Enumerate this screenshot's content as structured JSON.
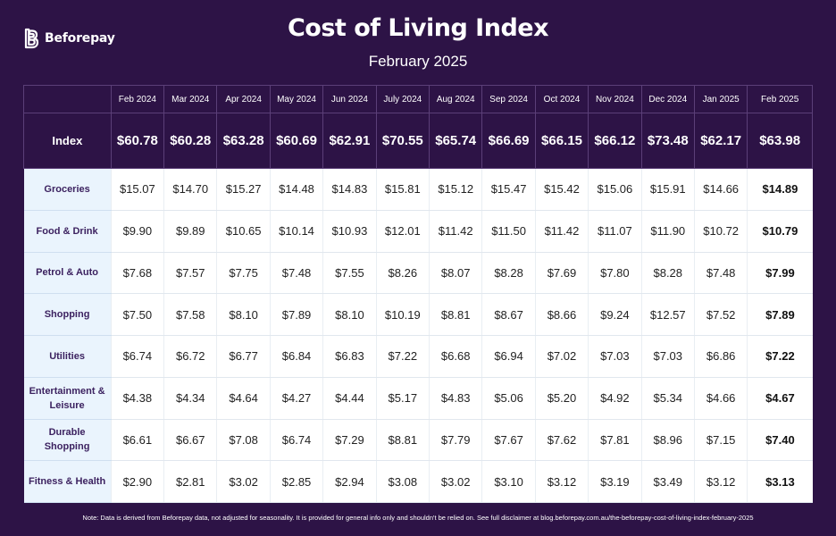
{
  "brand": {
    "name": "Beforepay"
  },
  "title": "Cost of Living Index",
  "subtitle": "February 2025",
  "note": "Note: Data is derived from Beforepay data, not adjusted for seasonality. It is provided for general info only and shouldn't be relied on. See full disclaimer at blog.beforepay.com.au/the-beforepay-cost-of-living-index-february-2025",
  "colors": {
    "background": "#2d1346",
    "category_column": "#eaf4fd",
    "category_text": "#3c2260",
    "grid": "#5b3f78"
  },
  "chart_data": {
    "type": "table",
    "columns": [
      "Feb 2024",
      "Mar 2024",
      "Apr 2024",
      "May 2024",
      "Jun 2024",
      "July 2024",
      "Aug 2024",
      "Sep 2024",
      "Oct 2024",
      "Nov 2024",
      "Dec 2024",
      "Jan 2025",
      "Feb 2025"
    ],
    "index": {
      "label": "Index",
      "values": [
        "$60.78",
        "$60.28",
        "$63.28",
        "$60.69",
        "$62.91",
        "$70.55",
        "$65.74",
        "$66.69",
        "$66.15",
        "$66.12",
        "$73.48",
        "$62.17",
        "$63.98"
      ]
    },
    "rows": [
      {
        "label": "Groceries",
        "values": [
          "$15.07",
          "$14.70",
          "$15.27",
          "$14.48",
          "$14.83",
          "$15.81",
          "$15.12",
          "$15.47",
          "$15.42",
          "$15.06",
          "$15.91",
          "$14.66",
          "$14.89"
        ]
      },
      {
        "label": "Food & Drink",
        "values": [
          "$9.90",
          "$9.89",
          "$10.65",
          "$10.14",
          "$10.93",
          "$12.01",
          "$11.42",
          "$11.50",
          "$11.42",
          "$11.07",
          "$11.90",
          "$10.72",
          "$10.79"
        ]
      },
      {
        "label": "Petrol & Auto",
        "values": [
          "$7.68",
          "$7.57",
          "$7.75",
          "$7.48",
          "$7.55",
          "$8.26",
          "$8.07",
          "$8.28",
          "$7.69",
          "$7.80",
          "$8.28",
          "$7.48",
          "$7.99"
        ]
      },
      {
        "label": "Shopping",
        "values": [
          "$7.50",
          "$7.58",
          "$8.10",
          "$7.89",
          "$8.10",
          "$10.19",
          "$8.81",
          "$8.67",
          "$8.66",
          "$9.24",
          "$12.57",
          "$7.52",
          "$7.89"
        ]
      },
      {
        "label": "Utilities",
        "values": [
          "$6.74",
          "$6.72",
          "$6.77",
          "$6.84",
          "$6.83",
          "$7.22",
          "$6.68",
          "$6.94",
          "$7.02",
          "$7.03",
          "$7.03",
          "$6.86",
          "$7.22"
        ]
      },
      {
        "label": "Entertainment & Leisure",
        "values": [
          "$4.38",
          "$4.34",
          "$4.64",
          "$4.27",
          "$4.44",
          "$5.17",
          "$4.83",
          "$5.06",
          "$5.20",
          "$4.92",
          "$5.34",
          "$4.66",
          "$4.67"
        ]
      },
      {
        "label": "Durable Shopping",
        "values": [
          "$6.61",
          "$6.67",
          "$7.08",
          "$6.74",
          "$7.29",
          "$8.81",
          "$7.79",
          "$7.67",
          "$7.62",
          "$7.81",
          "$8.96",
          "$7.15",
          "$7.40"
        ]
      },
      {
        "label": "Fitness & Health",
        "values": [
          "$2.90",
          "$2.81",
          "$3.02",
          "$2.85",
          "$2.94",
          "$3.08",
          "$3.02",
          "$3.10",
          "$3.12",
          "$3.19",
          "$3.49",
          "$3.12",
          "$3.13"
        ]
      }
    ]
  }
}
